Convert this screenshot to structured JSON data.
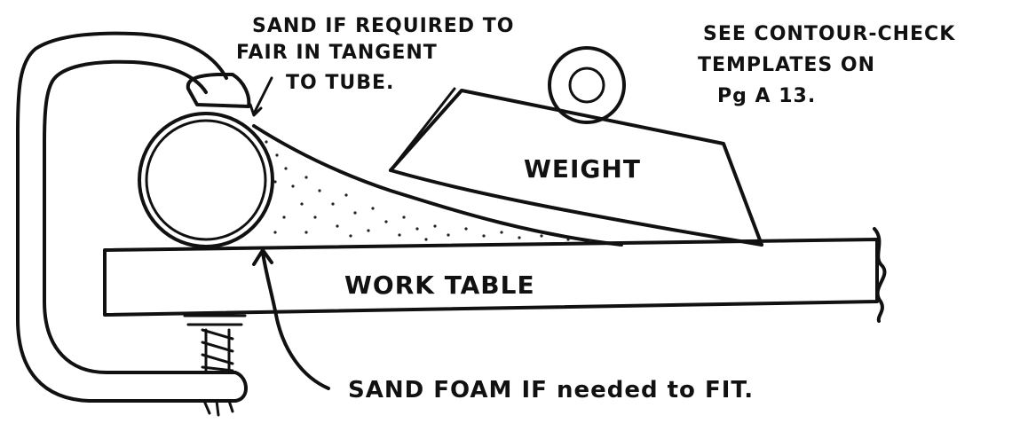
{
  "annotations": {
    "sand_note_line1": "SAND IF REQUIRED TO",
    "sand_note_line2": "FAIR IN TANGENT",
    "sand_note_line3": "TO TUBE.",
    "see_note_line1": "SEE CONTOUR-CHECK",
    "see_note_line2": "TEMPLATES ON",
    "see_note_line3": "Pg A 13.",
    "weight_label": "WEIGHT",
    "table_label": "WORK TABLE",
    "foam_note": "SAND FOAM IF needed to FIT."
  },
  "colors": {
    "ink": "#111111",
    "paper": "#ffffff"
  }
}
